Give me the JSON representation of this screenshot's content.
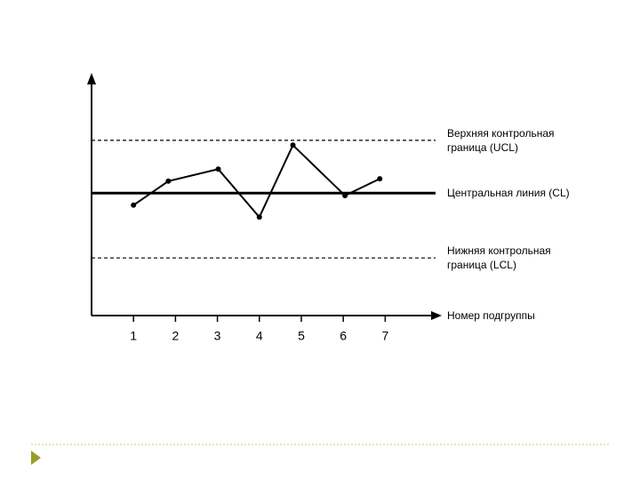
{
  "chart_data": {
    "type": "line",
    "x_label": "Номер подгруппы",
    "xlim": [
      0,
      8.2
    ],
    "xticks": [
      1,
      2,
      3,
      4,
      5,
      6,
      7
    ],
    "ylim": [
      0,
      10
    ],
    "series": [
      {
        "color": "#000000",
        "x": [
          1,
          1.83,
          3.02,
          4,
          4.8,
          6.04,
          6.87
        ],
        "values": [
          4.6,
          5.6,
          6.1,
          4.1,
          7.1,
          5.0,
          5.7
        ]
      }
    ],
    "control_lines": [
      {
        "name": "Верхняя контрольная граница (UCL)",
        "value": 7.3,
        "style": "dashed"
      },
      {
        "name": "Центральная линия (CL)",
        "value": 5.1,
        "style": "solid"
      },
      {
        "name": "Нижняя контрольная граница (LCL)",
        "value": 2.4,
        "style": "dashed"
      }
    ]
  }
}
